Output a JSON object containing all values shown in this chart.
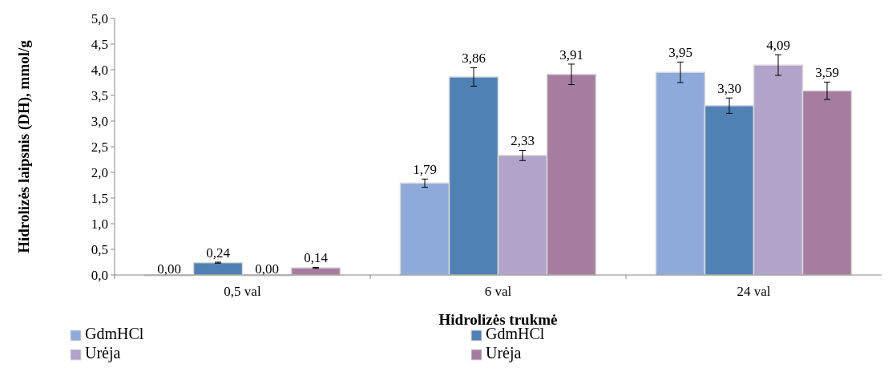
{
  "chart_data": {
    "type": "bar",
    "xlabel": "Hidrolizės trukmė",
    "ylabel": "Hidrolizės laipsnis (DH), mmol/g",
    "categories": [
      "0,5 val",
      "6 val",
      "24 val"
    ],
    "series": [
      {
        "name": "GdmHCl",
        "color": "#8eaadb",
        "values": [
          0,
          1.79,
          3.95
        ],
        "errors": [
          null,
          0.08,
          0.2
        ],
        "value_labels": [
          "0,00",
          "1,79",
          "3,95"
        ]
      },
      {
        "name": "GdmHCl",
        "color": "#5081b5",
        "values": [
          0.24,
          3.86,
          3.3
        ],
        "errors": [
          0.01,
          0.18,
          0.15
        ],
        "value_labels": [
          "0,24",
          "3,86",
          "3,30"
        ]
      },
      {
        "name": "Urėja",
        "color": "#b1a3c9",
        "values": [
          0,
          2.33,
          4.09
        ],
        "errors": [
          null,
          0.1,
          0.2
        ],
        "value_labels": [
          "0,00",
          "2,33",
          "4,09"
        ]
      },
      {
        "name": "Urėja",
        "color": "#a67da0",
        "values": [
          0.14,
          3.91,
          3.59
        ],
        "errors": [
          0.01,
          0.2,
          0.17
        ],
        "value_labels": [
          "0,14",
          "3,91",
          "3,59"
        ]
      }
    ],
    "ylim": [
      0,
      5
    ],
    "yticks": [
      {
        "value": 0,
        "label": "0,0"
      },
      {
        "value": 0.5,
        "label": "0,5"
      },
      {
        "value": 1,
        "label": "1,0"
      },
      {
        "value": 1.5,
        "label": "1,5"
      },
      {
        "value": 2,
        "label": "2,0"
      },
      {
        "value": 2.5,
        "label": "2,5"
      },
      {
        "value": 3,
        "label": "3,0"
      },
      {
        "value": 3.5,
        "label": "3,5"
      },
      {
        "value": 4,
        "label": "4,0"
      },
      {
        "value": 4.5,
        "label": "4,5"
      },
      {
        "value": 5,
        "label": "5,0"
      }
    ],
    "grid": false,
    "legend": "bottom"
  }
}
